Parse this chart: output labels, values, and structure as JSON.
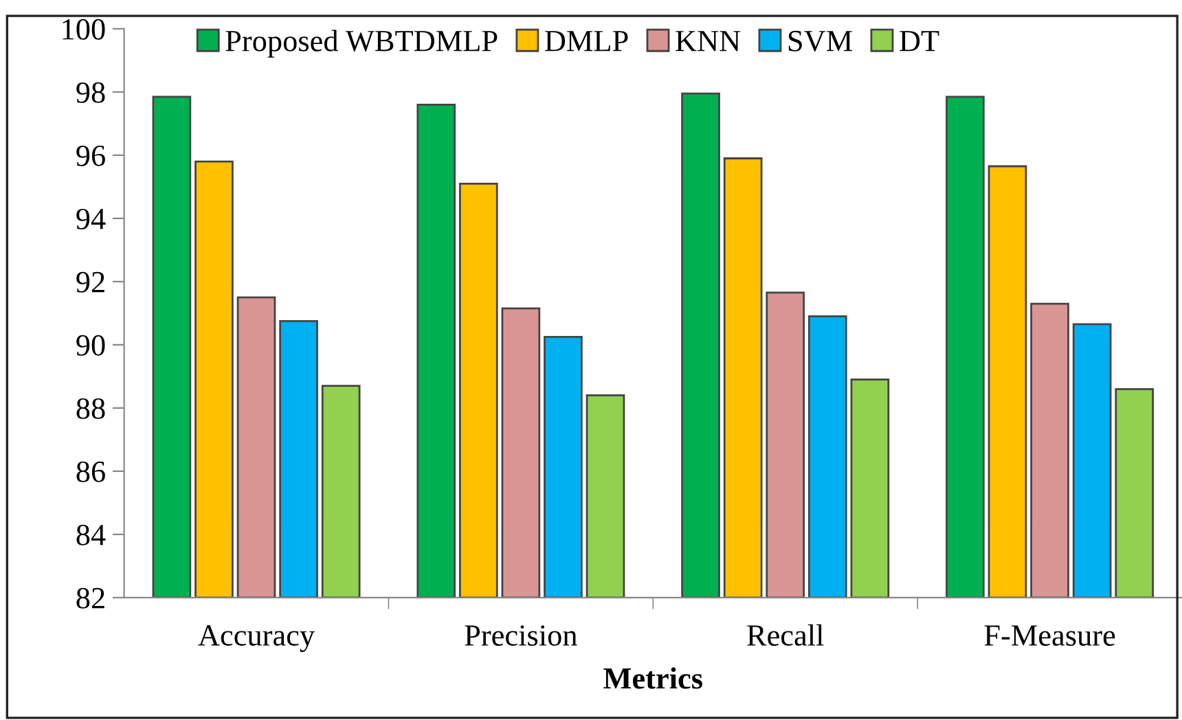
{
  "chart_data": {
    "type": "bar",
    "xlabel": "Metrics",
    "categories": [
      "Accuracy",
      "Precision",
      "Recall",
      "F-Measure"
    ],
    "series": [
      {
        "name": "Proposed WBTDMLP",
        "color": "#00b050",
        "values": [
          97.85,
          97.6,
          97.95,
          97.85
        ]
      },
      {
        "name": "DMLP",
        "color": "#ffc000",
        "values": [
          95.8,
          95.1,
          95.9,
          95.65
        ]
      },
      {
        "name": "KNN",
        "color": "#d99594",
        "values": [
          91.5,
          91.15,
          91.65,
          91.3
        ]
      },
      {
        "name": "SVM",
        "color": "#00b0f0",
        "values": [
          90.75,
          90.25,
          90.9,
          90.65
        ]
      },
      {
        "name": "DT",
        "color": "#92d050",
        "values": [
          88.7,
          88.4,
          88.9,
          88.6
        ]
      }
    ],
    "ylim": [
      82,
      100
    ],
    "yticks": [
      82,
      84,
      86,
      88,
      90,
      92,
      94,
      96,
      98,
      100
    ],
    "grid": false,
    "legend": "top"
  }
}
